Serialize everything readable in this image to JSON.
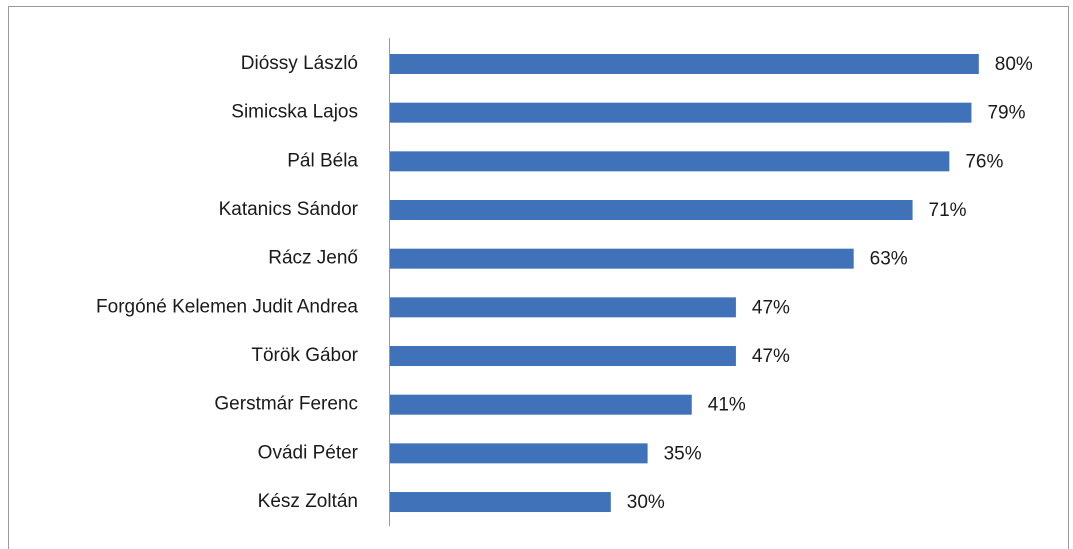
{
  "chart_data": {
    "type": "barh",
    "categories": [
      "Dióssy László",
      "Simicska Lajos",
      "Pál Béla",
      "Katanics Sándor",
      "Rácz Jenő",
      "Forgóné Kelemen Judit Andrea",
      "Török Gábor",
      "Gerstmár Ferenc",
      "Ovádi Péter",
      "Kész Zoltán"
    ],
    "values": [
      80,
      79,
      76,
      71,
      63,
      47,
      47,
      41,
      35,
      30
    ],
    "value_labels": [
      "80%",
      "79%",
      "76%",
      "71%",
      "63%",
      "47%",
      "47%",
      "41%",
      "35%",
      "30%"
    ],
    "color": "#3f72b9"
  }
}
